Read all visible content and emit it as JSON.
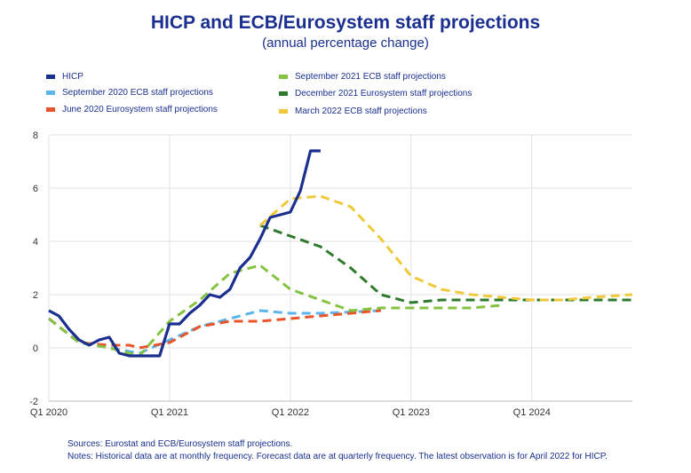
{
  "chart_data": {
    "type": "line",
    "title": "HICP and ECB/Eurosystem staff projections",
    "subtitle": "(annual percentage change)",
    "xlabel": "",
    "ylabel": "",
    "ylim": [
      -2,
      8
    ],
    "yticks": [
      "8",
      "6",
      "4",
      "2",
      "0",
      "-2"
    ],
    "xlim": [
      2020.0,
      2024.833
    ],
    "xticks": [
      {
        "label": "Q1 2020",
        "x": 2020.0
      },
      {
        "label": "Q1 2021",
        "x": 2021.0
      },
      {
        "label": "Q1 2022",
        "x": 2022.0
      },
      {
        "label": "Q1 2023",
        "x": 2023.0
      },
      {
        "label": "Q1 2024",
        "x": 2024.0
      }
    ],
    "series": [
      {
        "name": "HICP",
        "color": "#1a2f8f",
        "dashed": false,
        "points": [
          [
            2020.0,
            1.4
          ],
          [
            2020.083,
            1.2
          ],
          [
            2020.167,
            0.7
          ],
          [
            2020.25,
            0.3
          ],
          [
            2020.333,
            0.1
          ],
          [
            2020.417,
            0.3
          ],
          [
            2020.5,
            0.4
          ],
          [
            2020.583,
            -0.2
          ],
          [
            2020.667,
            -0.3
          ],
          [
            2020.75,
            -0.3
          ],
          [
            2020.833,
            -0.3
          ],
          [
            2020.917,
            -0.3
          ],
          [
            2021.0,
            0.9
          ],
          [
            2021.083,
            0.9
          ],
          [
            2021.167,
            1.3
          ],
          [
            2021.25,
            1.6
          ],
          [
            2021.333,
            2.0
          ],
          [
            2021.417,
            1.9
          ],
          [
            2021.5,
            2.2
          ],
          [
            2021.583,
            3.0
          ],
          [
            2021.667,
            3.4
          ],
          [
            2021.75,
            4.1
          ],
          [
            2021.833,
            4.9
          ],
          [
            2021.917,
            5.0
          ],
          [
            2022.0,
            5.1
          ],
          [
            2022.083,
            5.9
          ],
          [
            2022.167,
            7.4
          ],
          [
            2022.25,
            7.4
          ]
        ]
      },
      {
        "name": "September 2020 ECB staff projections",
        "color": "#5bb5ea",
        "dashed": true,
        "points": [
          [
            2020.0,
            1.1
          ],
          [
            2020.25,
            0.2
          ],
          [
            2020.5,
            0.0
          ],
          [
            2020.75,
            -0.2
          ],
          [
            2021.0,
            0.3
          ],
          [
            2021.25,
            0.8
          ],
          [
            2021.5,
            1.1
          ],
          [
            2021.75,
            1.4
          ],
          [
            2022.0,
            1.3
          ],
          [
            2022.25,
            1.3
          ],
          [
            2022.5,
            1.35
          ],
          [
            2022.75,
            1.4
          ]
        ]
      },
      {
        "name": "June 2020 Eurosystem staff projections",
        "color": "#e8552b",
        "dashed": true,
        "points": [
          [
            2020.0,
            1.1
          ],
          [
            2020.25,
            0.2
          ],
          [
            2020.5,
            0.1
          ],
          [
            2020.667,
            0.1
          ],
          [
            2020.75,
            0.0
          ],
          [
            2021.0,
            0.2
          ],
          [
            2021.25,
            0.8
          ],
          [
            2021.5,
            1.0
          ],
          [
            2021.75,
            1.0
          ],
          [
            2022.0,
            1.1
          ],
          [
            2022.25,
            1.2
          ],
          [
            2022.5,
            1.3
          ],
          [
            2022.75,
            1.4
          ]
        ]
      },
      {
        "name": "September 2021 ECB staff projections",
        "color": "#84c341",
        "dashed": true,
        "points": [
          [
            2020.0,
            1.1
          ],
          [
            2020.25,
            0.2
          ],
          [
            2020.5,
            0.0
          ],
          [
            2020.75,
            -0.3
          ],
          [
            2021.0,
            1.0
          ],
          [
            2021.25,
            1.8
          ],
          [
            2021.5,
            2.8
          ],
          [
            2021.75,
            3.1
          ],
          [
            2022.0,
            2.2
          ],
          [
            2022.25,
            1.8
          ],
          [
            2022.5,
            1.4
          ],
          [
            2022.75,
            1.5
          ],
          [
            2023.0,
            1.5
          ],
          [
            2023.25,
            1.5
          ],
          [
            2023.5,
            1.5
          ],
          [
            2023.75,
            1.6
          ]
        ]
      },
      {
        "name": "December 2021 Eurosystem staff projections",
        "color": "#2d7a2c",
        "dashed": true,
        "points": [
          [
            2021.75,
            4.6
          ],
          [
            2022.0,
            4.2
          ],
          [
            2022.25,
            3.8
          ],
          [
            2022.5,
            3.0
          ],
          [
            2022.75,
            2.0
          ],
          [
            2023.0,
            1.7
          ],
          [
            2023.25,
            1.8
          ],
          [
            2023.5,
            1.8
          ],
          [
            2023.75,
            1.8
          ],
          [
            2024.0,
            1.8
          ],
          [
            2024.25,
            1.8
          ],
          [
            2024.5,
            1.8
          ],
          [
            2024.833,
            1.8
          ]
        ]
      },
      {
        "name": "March 2022 ECB staff projections",
        "color": "#f0c93a",
        "dashed": true,
        "points": [
          [
            2021.75,
            4.6
          ],
          [
            2022.0,
            5.6
          ],
          [
            2022.25,
            5.7
          ],
          [
            2022.5,
            5.3
          ],
          [
            2022.75,
            4.1
          ],
          [
            2023.0,
            2.7
          ],
          [
            2023.25,
            2.2
          ],
          [
            2023.5,
            2.0
          ],
          [
            2023.75,
            1.9
          ],
          [
            2024.0,
            1.8
          ],
          [
            2024.25,
            1.8
          ],
          [
            2024.5,
            1.9
          ],
          [
            2024.833,
            2.0
          ]
        ]
      }
    ]
  },
  "legend": [
    {
      "label": "HICP",
      "color": "#1a2f8f"
    },
    {
      "label": "September 2020 ECB staff projections",
      "color": "#5bb5ea"
    },
    {
      "label": "June 2020 Eurosystem staff projections",
      "color": "#e8552b"
    },
    {
      "label": "September 2021 ECB staff projections",
      "color": "#84c341"
    },
    {
      "label": "December 2021 Eurosystem staff projections",
      "color": "#2d7a2c"
    },
    {
      "label": "March 2022 ECB staff projections",
      "color": "#f0c93a"
    }
  ],
  "footer": {
    "sources": "Sources: Eurostat and ECB/Eurosystem staff projections.",
    "notes": "Notes: Historical data are at monthly frequency. Forecast data are at quarterly frequency. The latest observation is for April 2022 for HICP."
  }
}
